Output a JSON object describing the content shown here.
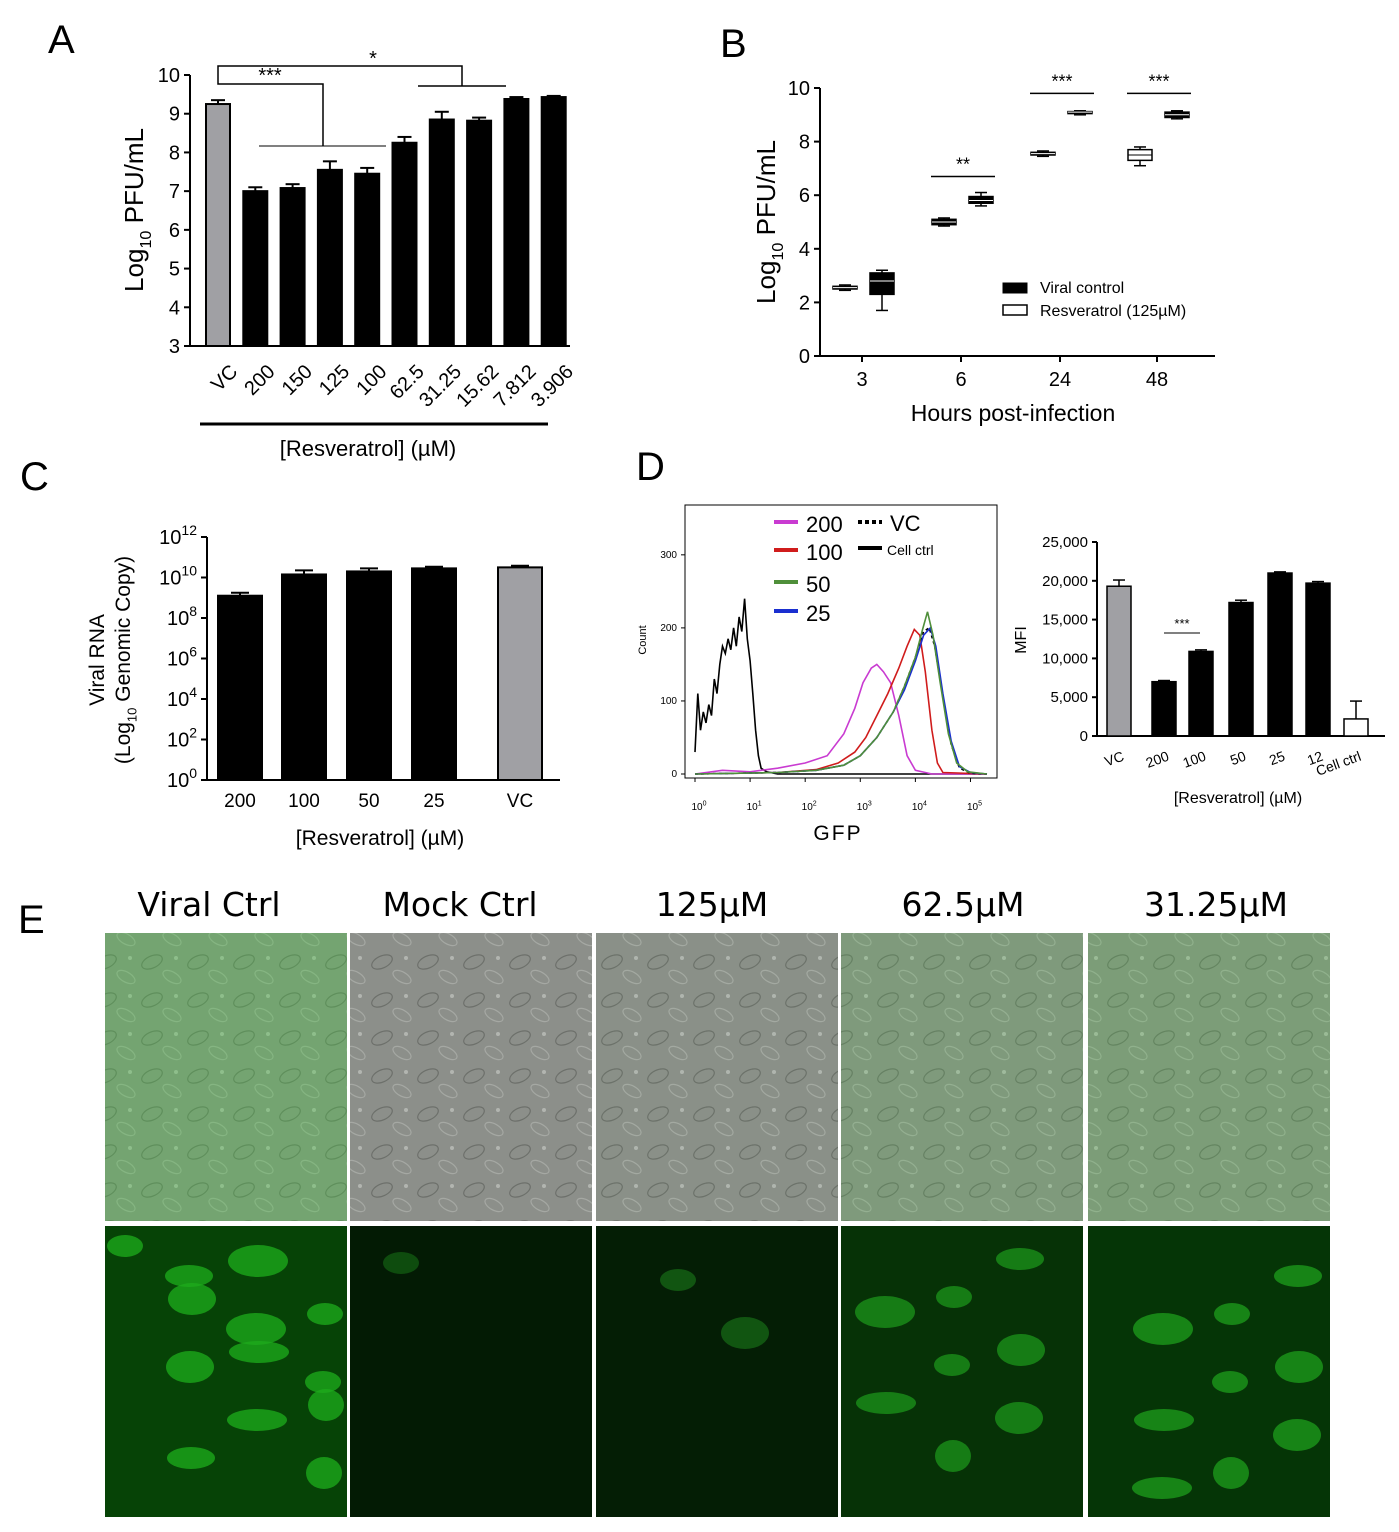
{
  "panel_labels": [
    "A",
    "B",
    "C",
    "D",
    "E"
  ],
  "colors": {
    "black_bar": "#000000",
    "vc_bar": "#a0a0a4",
    "c_vc_bar": "#a0a0a4",
    "h200": "#c93bd1",
    "h100": "#d01c1c",
    "h50": "#4f8f3a",
    "h25": "#1a2fd0"
  },
  "chart_data": [
    {
      "id": "A",
      "type": "bar",
      "categories": [
        "VC",
        "200",
        "150",
        "125",
        "100",
        "62.5",
        "31.25",
        "15.62",
        "7.812",
        "3.906"
      ],
      "values": [
        9.25,
        7.0,
        7.08,
        7.55,
        7.45,
        8.25,
        8.85,
        8.82,
        9.38,
        9.43
      ],
      "errors": [
        0.1,
        0.1,
        0.1,
        0.22,
        0.15,
        0.15,
        0.2,
        0.08,
        0.05,
        0.03
      ],
      "bar_colors": [
        "#a0a0a4",
        "#000000",
        "#000000",
        "#000000",
        "#000000",
        "#000000",
        "#000000",
        "#000000",
        "#000000",
        "#000000"
      ],
      "ylabel_main": "Log",
      "ylabel_sub": "10",
      "ylabel_tail": " PFU/mL",
      "xlabel": "[Resveratrol] (µM)",
      "ylim": [
        3,
        10
      ],
      "yticks": [
        "3",
        "4",
        "5",
        "6",
        "7",
        "8",
        "9",
        "10"
      ],
      "sig": [
        "***",
        "*"
      ]
    },
    {
      "id": "B",
      "type": "box",
      "categories": [
        "3",
        "6",
        "24",
        "48"
      ],
      "series": [
        {
          "name": "Viral control",
          "fill": "#000000",
          "boxes": [
            [
              2.45,
              2.5,
              2.55,
              2.6,
              2.65
            ],
            [
              4.85,
              4.9,
              5.0,
              5.1,
              5.15
            ],
            [
              7.45,
              7.5,
              7.55,
              7.6,
              7.65
            ],
            [
              7.1,
              7.3,
              7.5,
              7.7,
              7.8
            ]
          ]
        },
        {
          "name": "Resveratrol (125µM)",
          "fill": "#000000",
          "boxes": [
            [
              1.7,
              2.3,
              2.8,
              3.1,
              3.2
            ],
            [
              5.6,
              5.7,
              5.8,
              5.95,
              6.1
            ],
            [
              9.0,
              9.05,
              9.1,
              9.12,
              9.15
            ],
            [
              8.85,
              8.9,
              9.0,
              9.1,
              9.15
            ]
          ]
        }
      ],
      "legend_labels": [
        "Viral control",
        "Resveratrol (125µM)"
      ],
      "ylabel_main": "Log",
      "ylabel_sub": "10",
      "ylabel_tail": " PFU/mL",
      "xlabel": "Hours post-infection",
      "ylim": [
        0,
        10
      ],
      "yticks": [
        "0",
        "2",
        "4",
        "6",
        "8",
        "10"
      ],
      "sig": [
        "**",
        "***",
        "***"
      ]
    },
    {
      "id": "C",
      "type": "bar",
      "categories": [
        "200",
        "100",
        "50",
        "25",
        "VC"
      ],
      "log_values": [
        9.1,
        10.15,
        10.3,
        10.45,
        10.5
      ],
      "log_errors": [
        0.15,
        0.2,
        0.15,
        0.08,
        0.08
      ],
      "bar_colors": [
        "#000000",
        "#000000",
        "#000000",
        "#000000",
        "#a0a0a4"
      ],
      "ylabel_line1": "Viral RNA",
      "ylabel_line2_pre": "(Log",
      "ylabel_line2_sub": "10",
      "ylabel_line2_tail": " Genomic Copy)",
      "xlabel": "[Resveratrol] (µM)",
      "ylim": [
        0,
        12
      ],
      "yticks": [
        {
          "base": "10",
          "exp": "0"
        },
        {
          "base": "10",
          "exp": "2"
        },
        {
          "base": "10",
          "exp": "4"
        },
        {
          "base": "10",
          "exp": "6"
        },
        {
          "base": "10",
          "exp": "8"
        },
        {
          "base": "10",
          "exp": "10"
        },
        {
          "base": "10",
          "exp": "12"
        }
      ]
    },
    {
      "id": "D-histogram",
      "type": "line",
      "xlabel": "GFP",
      "ylabel": "Count",
      "ylim": [
        0,
        360
      ],
      "yticks": [
        "0",
        "100",
        "200",
        "300"
      ],
      "xticks": [
        {
          "base": "10",
          "exp": "0"
        },
        {
          "base": "10",
          "exp": "1"
        },
        {
          "base": "10",
          "exp": "2"
        },
        {
          "base": "10",
          "exp": "3"
        },
        {
          "base": "10",
          "exp": "4"
        },
        {
          "base": "10",
          "exp": "5"
        }
      ],
      "legend": [
        {
          "label": "200",
          "style": "solid-magenta"
        },
        {
          "label": "100",
          "style": "solid-red"
        },
        {
          "label": "50",
          "style": "solid-green"
        },
        {
          "label": "25",
          "style": "solid-blue"
        },
        {
          "label": "VC",
          "style": "dotted-black"
        },
        {
          "label": "Cell ctrl",
          "style": "solid-black"
        }
      ],
      "series": [
        {
          "name": "Cell ctrl",
          "color": "#000000",
          "dash": "",
          "points": [
            [
              0,
              30
            ],
            [
              0.05,
              110
            ],
            [
              0.1,
              60
            ],
            [
              0.15,
              85
            ],
            [
              0.2,
              70
            ],
            [
              0.25,
              95
            ],
            [
              0.3,
              80
            ],
            [
              0.35,
              130
            ],
            [
              0.4,
              110
            ],
            [
              0.45,
              150
            ],
            [
              0.5,
              175
            ],
            [
              0.55,
              165
            ],
            [
              0.6,
              185
            ],
            [
              0.65,
              170
            ],
            [
              0.7,
              200
            ],
            [
              0.75,
              175
            ],
            [
              0.8,
              215
            ],
            [
              0.85,
              195
            ],
            [
              0.9,
              240
            ],
            [
              0.95,
              185
            ],
            [
              1.0,
              155
            ],
            [
              1.05,
              110
            ],
            [
              1.1,
              60
            ],
            [
              1.15,
              25
            ],
            [
              1.2,
              8
            ],
            [
              1.3,
              3
            ],
            [
              1.5,
              0
            ],
            [
              5.3,
              0
            ]
          ]
        },
        {
          "name": "200",
          "color": "#c93bd1",
          "dash": "",
          "points": [
            [
              0,
              0
            ],
            [
              0.5,
              5
            ],
            [
              1.0,
              3
            ],
            [
              1.5,
              8
            ],
            [
              2.0,
              15
            ],
            [
              2.4,
              25
            ],
            [
              2.7,
              55
            ],
            [
              2.9,
              90
            ],
            [
              3.05,
              125
            ],
            [
              3.2,
              145
            ],
            [
              3.3,
              150
            ],
            [
              3.42,
              140
            ],
            [
              3.55,
              125
            ],
            [
              3.7,
              80
            ],
            [
              3.85,
              25
            ],
            [
              4.0,
              5
            ],
            [
              4.3,
              0
            ],
            [
              5.3,
              0
            ]
          ]
        },
        {
          "name": "100",
          "color": "#d01c1c",
          "dash": "",
          "points": [
            [
              0,
              0
            ],
            [
              1.5,
              2
            ],
            [
              2.2,
              6
            ],
            [
              2.6,
              15
            ],
            [
              2.9,
              30
            ],
            [
              3.1,
              50
            ],
            [
              3.3,
              80
            ],
            [
              3.5,
              110
            ],
            [
              3.7,
              145
            ],
            [
              3.85,
              175
            ],
            [
              3.98,
              198
            ],
            [
              4.08,
              190
            ],
            [
              4.18,
              140
            ],
            [
              4.3,
              60
            ],
            [
              4.4,
              15
            ],
            [
              4.5,
              2
            ],
            [
              5.3,
              0
            ]
          ]
        },
        {
          "name": "VC",
          "color": "#000000",
          "dash": "3,3",
          "points": [
            [
              0,
              0
            ],
            [
              1.5,
              2
            ],
            [
              2.2,
              5
            ],
            [
              2.7,
              12
            ],
            [
              3.0,
              25
            ],
            [
              3.3,
              50
            ],
            [
              3.6,
              85
            ],
            [
              3.8,
              120
            ],
            [
              4.0,
              160
            ],
            [
              4.15,
              195
            ],
            [
              4.25,
              200
            ],
            [
              4.35,
              175
            ],
            [
              4.5,
              105
            ],
            [
              4.65,
              40
            ],
            [
              4.8,
              8
            ],
            [
              5.0,
              1
            ],
            [
              5.3,
              0
            ]
          ]
        },
        {
          "name": "25",
          "color": "#1a2fd0",
          "dash": "",
          "points": [
            [
              0,
              0
            ],
            [
              1.5,
              2
            ],
            [
              2.2,
              5
            ],
            [
              2.7,
              12
            ],
            [
              3.0,
              25
            ],
            [
              3.3,
              50
            ],
            [
              3.6,
              85
            ],
            [
              3.8,
              115
            ],
            [
              4.0,
              155
            ],
            [
              4.15,
              190
            ],
            [
              4.27,
              200
            ],
            [
              4.37,
              175
            ],
            [
              4.5,
              110
            ],
            [
              4.65,
              45
            ],
            [
              4.8,
              10
            ],
            [
              5.0,
              2
            ],
            [
              5.3,
              0
            ]
          ]
        },
        {
          "name": "50",
          "color": "#4f8f3a",
          "dash": "",
          "points": [
            [
              0,
              0
            ],
            [
              1.5,
              2
            ],
            [
              2.2,
              5
            ],
            [
              2.7,
              12
            ],
            [
              3.0,
              25
            ],
            [
              3.3,
              50
            ],
            [
              3.6,
              85
            ],
            [
              3.8,
              120
            ],
            [
              4.0,
              160
            ],
            [
              4.12,
              195
            ],
            [
              4.22,
              222
            ],
            [
              4.32,
              190
            ],
            [
              4.45,
              125
            ],
            [
              4.6,
              55
            ],
            [
              4.75,
              15
            ],
            [
              4.95,
              3
            ],
            [
              5.3,
              0
            ]
          ]
        }
      ]
    },
    {
      "id": "D-bars",
      "type": "bar",
      "categories": [
        "VC",
        "200",
        "100",
        "50",
        "25",
        "12",
        "Cell ctrl"
      ],
      "values": [
        19300,
        7000,
        10900,
        17200,
        21000,
        19700,
        2200
      ],
      "errors": [
        800,
        150,
        200,
        300,
        150,
        200,
        2300
      ],
      "bar_colors": [
        "#a0a0a4",
        "#000000",
        "#000000",
        "#000000",
        "#000000",
        "#000000",
        "#ffffff"
      ],
      "ylabel": "MFI",
      "xlabel": "[Resveratrol] (µM)",
      "ylim": [
        0,
        25000
      ],
      "yticks": [
        "0",
        "5,000",
        "10,000",
        "15,000",
        "20,000",
        "25,000"
      ],
      "sig": [
        "***"
      ]
    }
  ],
  "microscopy": {
    "titles": [
      "Viral Ctrl",
      "Mock Ctrl",
      "125µM",
      "62.5µM",
      "31.25µM"
    ],
    "green_intensity": [
      0.95,
      0.05,
      0.12,
      0.55,
      0.65
    ]
  }
}
